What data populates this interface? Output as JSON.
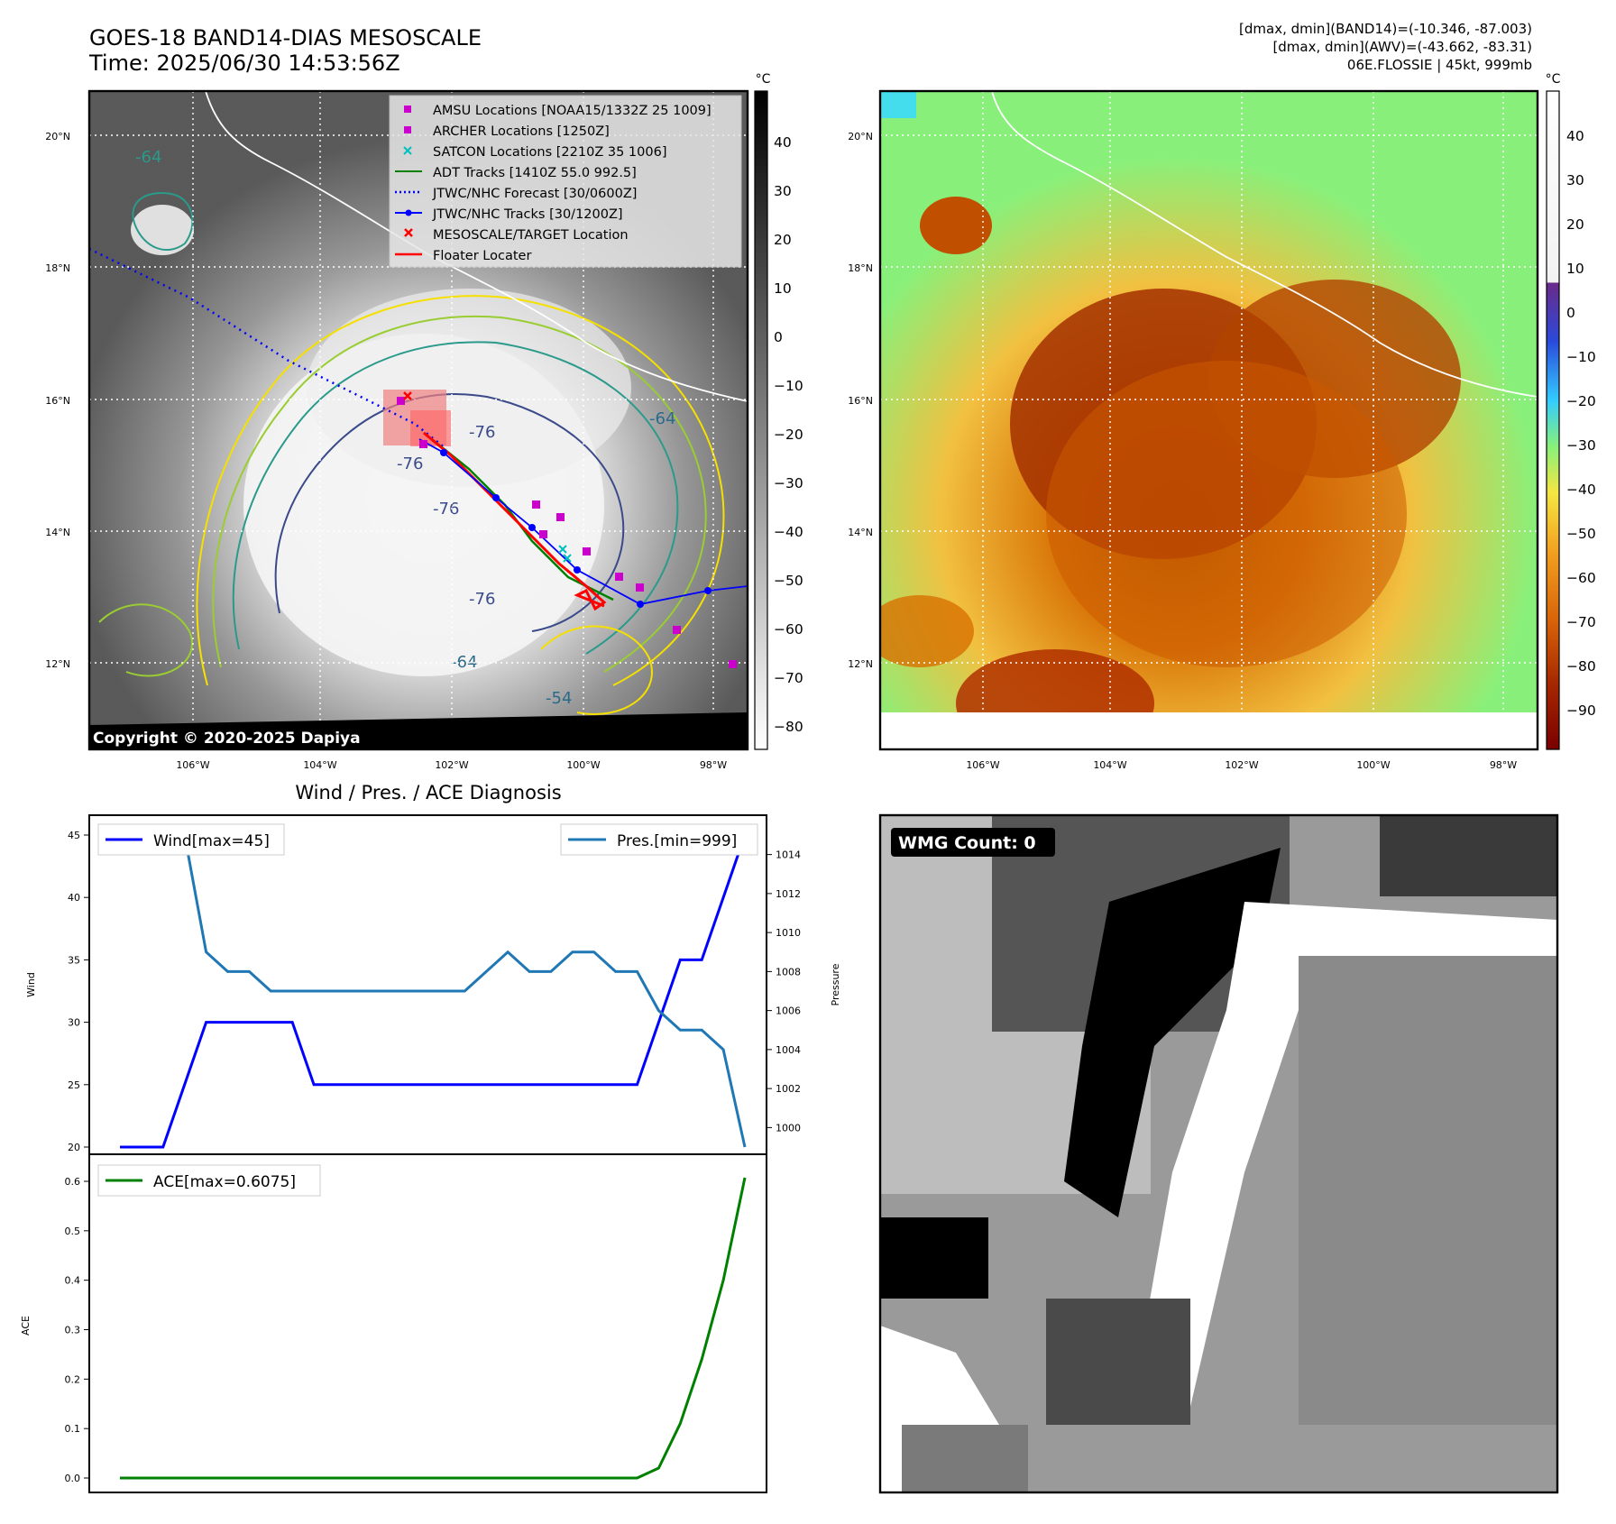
{
  "header": {
    "title_line1": "GOES-18 BAND14-DIAS MESOSCALE",
    "title_line2": "Time: 2025/06/30 14:53:56Z",
    "stats_line1": "[dmax, dmin](BAND14)=(-10.346, -87.003)",
    "stats_line2": "[dmax, dmin](AWV)=(-43.662, -83.31)",
    "stats_line3": "06E.FLOSSIE | 45kt, 999mb"
  },
  "map": {
    "lat_labels": [
      "20°N",
      "18°N",
      "16°N",
      "14°N",
      "12°N"
    ],
    "lon_labels": [
      "106°W",
      "104°W",
      "102°W",
      "100°W",
      "98°W"
    ],
    "copyright": "Copyright © 2020-2025 Dapiya",
    "contour_labels": [
      "-76",
      "-76",
      "-76",
      "-76",
      "-64",
      "-64",
      "-54",
      "-64"
    ],
    "colors": {
      "grid": "#ffffff",
      "coast": "#ffffff"
    }
  },
  "legend": {
    "items": [
      {
        "label": "AMSU Locations [NOAA15/1332Z 25 1009]",
        "color": "#cc00cc",
        "marker": "square"
      },
      {
        "label": "ARCHER Locations [1250Z]",
        "color": "#cc00cc",
        "marker": "square"
      },
      {
        "label": "SATCON Locations [2210Z 35 1006]",
        "color": "#00bfbf",
        "marker": "x"
      },
      {
        "label": "ADT Tracks [1410Z 55.0 992.5]",
        "color": "#008000",
        "marker": "line"
      },
      {
        "label": "JTWC/NHC Forecast [30/0600Z]",
        "color": "#0000ff",
        "marker": "dotted"
      },
      {
        "label": "JTWC/NHC Tracks [30/1200Z]",
        "color": "#0000ff",
        "marker": "line-dot"
      },
      {
        "label": "MESOSCALE/TARGET Location",
        "color": "#ff0000",
        "marker": "x"
      },
      {
        "label": "Floater Locater",
        "color": "#ff0000",
        "marker": "line"
      }
    ]
  },
  "colorbar_gray": {
    "unit": "°C",
    "ticks": [
      "40",
      "30",
      "20",
      "10",
      "0",
      "−10",
      "−20",
      "−30",
      "−40",
      "−50",
      "−60",
      "−70",
      "−80"
    ]
  },
  "colorbar_color": {
    "unit": "°C",
    "ticks": [
      "40",
      "30",
      "20",
      "10",
      "0",
      "−10",
      "−20",
      "−30",
      "−40",
      "−50",
      "−60",
      "−70",
      "−80",
      "−90"
    ]
  },
  "wmg": {
    "label": "WMG Count: 0"
  },
  "chart_data": [
    {
      "type": "line",
      "title": "Wind / Pres. / ACE Diagnosis",
      "ylabel": "Wind",
      "ylabel_right": "Pressure",
      "ylim": [
        19.5,
        46
      ],
      "ylim_right": [
        999,
        1015
      ],
      "yticks": [
        "45",
        "40",
        "35",
        "30",
        "25",
        "20"
      ],
      "yticks_right": [
        "1014",
        "1012",
        "1010",
        "1008",
        "1006",
        "1004",
        "1002",
        "1000"
      ],
      "series": [
        {
          "name": "Wind[max=45]",
          "color": "#0000ff",
          "values": [
            20,
            20,
            20,
            25,
            30,
            30,
            30,
            30,
            30,
            25,
            25,
            25,
            25,
            25,
            25,
            25,
            25,
            25,
            25,
            25,
            25,
            25,
            25,
            25,
            25,
            30,
            35,
            35,
            40,
            45
          ]
        },
        {
          "name": "Pres.[min=999]",
          "color": "#1f77b4",
          "values": [
            1015,
            1015,
            1015,
            1015,
            1009,
            1008,
            1008,
            1007,
            1007,
            1007,
            1007,
            1007,
            1007,
            1007,
            1007,
            1007,
            1007,
            1008,
            1009,
            1008,
            1008,
            1009,
            1009,
            1008,
            1008,
            1006,
            1005,
            1005,
            1004,
            999
          ]
        }
      ]
    },
    {
      "type": "line",
      "ylabel": "ACE",
      "ylim": [
        -0.02,
        0.63
      ],
      "yticks": [
        "0.6",
        "0.5",
        "0.4",
        "0.3",
        "0.2",
        "0.1",
        "0.0"
      ],
      "series": [
        {
          "name": "ACE[max=0.6075]",
          "color": "#008000",
          "values": [
            0,
            0,
            0,
            0,
            0,
            0,
            0,
            0,
            0,
            0,
            0,
            0,
            0,
            0,
            0,
            0,
            0,
            0,
            0,
            0,
            0,
            0,
            0,
            0,
            0,
            0.02,
            0.11,
            0.24,
            0.4,
            0.6075
          ]
        }
      ]
    }
  ]
}
